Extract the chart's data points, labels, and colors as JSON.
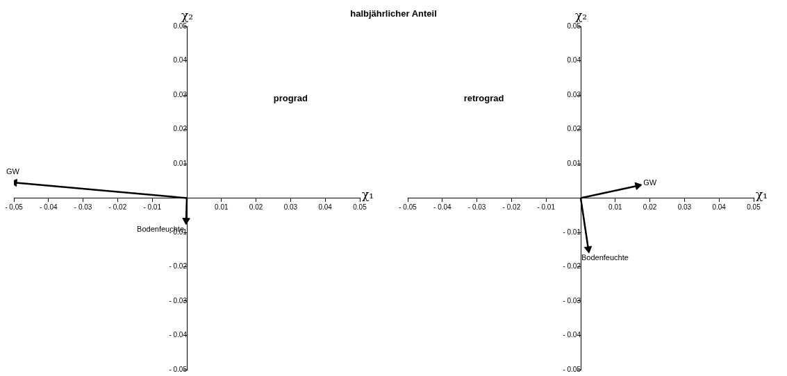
{
  "chart_data": [
    {
      "type": "line",
      "title": "halbjährlicher Anteil",
      "xlabel": "χ₁",
      "ylabel": "χ₂",
      "annotations": [
        "prograd"
      ],
      "series": [
        {
          "name": "GW",
          "color": "#000000",
          "x": [
            0,
            -0.0498
          ],
          "values": [
            0,
            0.0045
          ]
        },
        {
          "name": "Bodenfeuchte",
          "color": "#000000",
          "x": [
            0,
            -0.0002
          ],
          "values": [
            0,
            -0.0065
          ]
        }
      ],
      "xlim": [
        -0.05,
        0.05
      ],
      "ylim": [
        -0.05,
        0.05
      ],
      "xticks": [
        {
          "value": -0.05,
          "label": "- 0.05"
        },
        {
          "value": -0.04,
          "label": "- 0.04"
        },
        {
          "value": -0.03,
          "label": "- 0.03"
        },
        {
          "value": -0.02,
          "label": "- 0.02"
        },
        {
          "value": -0.01,
          "label": "- 0.01"
        },
        0.01,
        0.02,
        0.03,
        0.04,
        0.05
      ],
      "yticks": [
        {
          "value": -0.05,
          "label": "- 0.05"
        },
        {
          "value": -0.04,
          "label": "- 0.04"
        },
        {
          "value": -0.03,
          "label": "- 0.03"
        },
        {
          "value": -0.02,
          "label": "- 0.02"
        },
        {
          "value": -0.01,
          "label": "- 0.01"
        },
        0.01,
        0.02,
        0.03,
        0.04,
        0.05
      ],
      "grid": false,
      "legend": false,
      "marker": "triangle"
    },
    {
      "type": "line",
      "xlabel": "χ₁",
      "ylabel": "χ₂",
      "annotations": [
        "retrograd"
      ],
      "series": [
        {
          "name": "GW",
          "color": "#000000",
          "x": [
            0,
            0.0165
          ],
          "values": [
            0,
            0.0036
          ]
        },
        {
          "name": "Bodenfeuchte",
          "color": "#000000",
          "x": [
            0,
            0.0022
          ],
          "values": [
            0,
            -0.0148
          ]
        }
      ],
      "xlim": [
        -0.05,
        0.05
      ],
      "ylim": [
        -0.05,
        0.05
      ],
      "xticks": [
        {
          "value": -0.05,
          "label": "- 0.05"
        },
        {
          "value": -0.04,
          "label": "- 0.04"
        },
        {
          "value": -0.03,
          "label": "- 0.03"
        },
        {
          "value": -0.02,
          "label": "- 0.02"
        },
        {
          "value": -0.01,
          "label": "- 0.01"
        },
        0.01,
        0.02,
        0.03,
        0.04,
        0.05
      ],
      "yticks": [
        {
          "value": -0.05,
          "label": "- 0.05"
        },
        {
          "value": -0.04,
          "label": "- 0.04"
        },
        {
          "value": -0.03,
          "label": "- 0.03"
        },
        {
          "value": -0.02,
          "label": "- 0.02"
        },
        {
          "value": -0.01,
          "label": "- 0.01"
        },
        0.01,
        0.02,
        0.03,
        0.04,
        0.05
      ],
      "grid": false,
      "legend": false,
      "marker": "triangle"
    }
  ]
}
